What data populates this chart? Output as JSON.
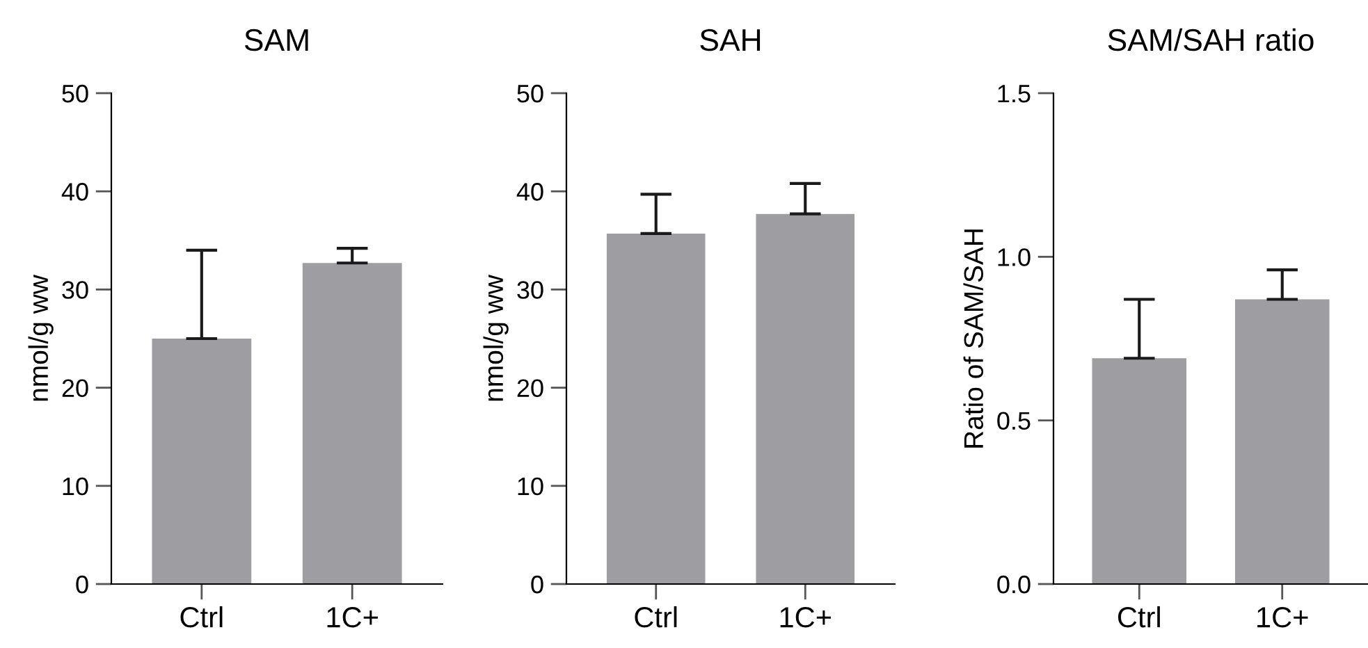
{
  "chart_data": [
    {
      "type": "bar",
      "title": "SAM",
      "ylabel": "nmol/g ww",
      "categories": [
        "Ctrl",
        "1C+"
      ],
      "values": [
        25,
        32.7
      ],
      "errors": [
        [
          25,
          34
        ],
        [
          32.7,
          34.2
        ]
      ],
      "color": "#9e9da2",
      "ylim": [
        0,
        50
      ],
      "yticks": [
        0,
        10,
        20,
        30,
        40,
        50
      ],
      "grid": false,
      "legend": false
    },
    {
      "type": "bar",
      "title": "SAH",
      "ylabel": "nmol/g ww",
      "categories": [
        "Ctrl",
        "1C+"
      ],
      "values": [
        35.7,
        37.7
      ],
      "errors": [
        [
          35.7,
          39.7
        ],
        [
          37.7,
          40.8
        ]
      ],
      "color": "#9e9da2",
      "ylim": [
        0,
        50
      ],
      "yticks": [
        0,
        10,
        20,
        30,
        40,
        50
      ],
      "grid": false,
      "legend": false
    },
    {
      "type": "bar",
      "title": "SAM/SAH ratio",
      "ylabel": "Ratio of SAM/SAH",
      "categories": [
        "Ctrl",
        "1C+"
      ],
      "values": [
        0.69,
        0.87
      ],
      "errors": [
        [
          0.69,
          0.87
        ],
        [
          0.87,
          0.96
        ]
      ],
      "color": "#9e9da2",
      "ylim": [
        0,
        1.5
      ],
      "yticks": [
        {
          "value": 0,
          "label": "0.0"
        },
        {
          "value": 0.5,
          "label": "0.5"
        },
        {
          "value": 1,
          "label": "1.0"
        },
        {
          "value": 1.5,
          "label": "1.5"
        }
      ],
      "grid": false,
      "legend": false
    }
  ]
}
